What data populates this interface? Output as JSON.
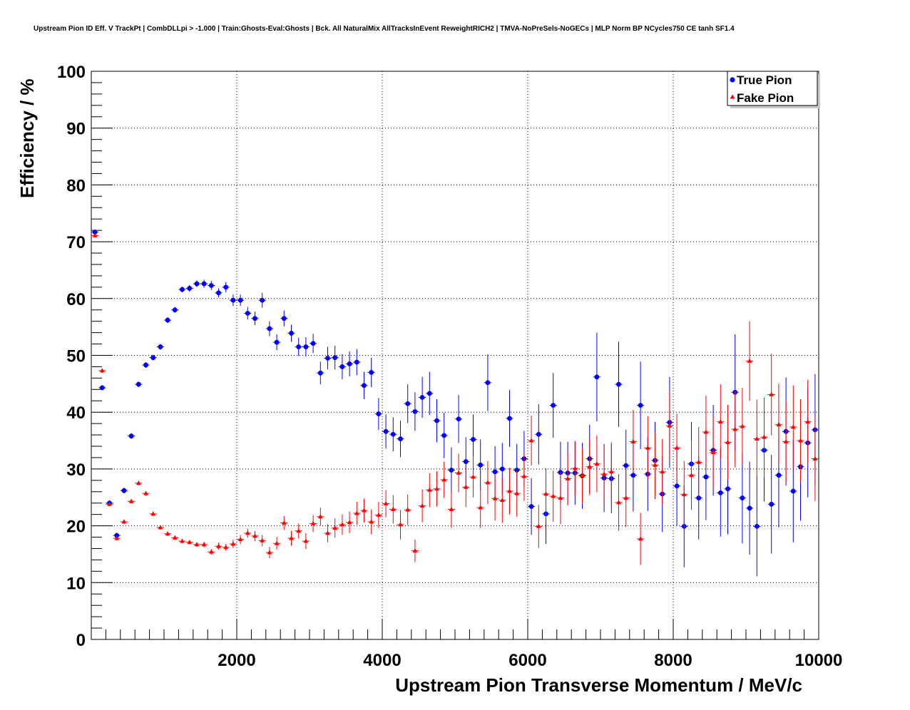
{
  "chart_data": {
    "type": "scatter",
    "title": "Upstream Pion ID Eff. V TrackPt | CombDLLpi > -1.000 | Train:Ghosts-Eval:Ghosts | Bck. All NaturalMix AllTracksInEvent ReweightRICH2 | TMVA-NoPreSels-NoGECs | MLP Norm BP NCycles750 CE tanh SF1.4",
    "xlabel": "Upstream Pion Transverse Momentum / MeV/c",
    "ylabel": "Efficiency / %",
    "xlim": [
      0,
      10000
    ],
    "ylim": [
      0,
      100
    ],
    "x_ticks": [
      2000,
      4000,
      6000,
      8000,
      10000
    ],
    "y_ticks": [
      0,
      10,
      20,
      30,
      40,
      50,
      60,
      70,
      80,
      90,
      100
    ],
    "grid": true,
    "legend_position": "top-right",
    "bin_width": 100,
    "series": [
      {
        "name": "True Pion",
        "marker": "circle",
        "color": "#0000ff",
        "x": [
          50,
          150,
          250,
          350,
          450,
          550,
          650,
          750,
          850,
          950,
          1050,
          1150,
          1250,
          1350,
          1450,
          1550,
          1650,
          1750,
          1850,
          1950,
          2050,
          2150,
          2250,
          2350,
          2450,
          2550,
          2650,
          2750,
          2850,
          2950,
          3050,
          3150,
          3250,
          3350,
          3450,
          3550,
          3650,
          3750,
          3850,
          3950,
          4050,
          4150,
          4250,
          4350,
          4450,
          4550,
          4650,
          4750,
          4850,
          4950,
          5050,
          5150,
          5250,
          5350,
          5450,
          5550,
          5650,
          5750,
          5850,
          5950,
          6050,
          6150,
          6250,
          6350,
          6450,
          6550,
          6650,
          6750,
          6850,
          6950,
          7050,
          7150,
          7250,
          7350,
          7450,
          7550,
          7650,
          7750,
          7850,
          7950,
          8050,
          8150,
          8250,
          8350,
          8450,
          8550,
          8650,
          8750,
          8850,
          8950,
          9050,
          9150,
          9250,
          9350,
          9450,
          9550,
          9650,
          9750,
          9850,
          9950
        ],
        "y": [
          71.7,
          44.3,
          24.0,
          18.3,
          26.2,
          35.8,
          44.9,
          48.3,
          49.6,
          51.5,
          56.2,
          58.0,
          61.6,
          61.8,
          62.6,
          62.6,
          62.3,
          61.0,
          62.0,
          59.7,
          59.7,
          57.4,
          56.5,
          59.7,
          54.7,
          52.3,
          56.5,
          53.9,
          51.5,
          51.5,
          52.1,
          46.9,
          49.5,
          49.6,
          48.0,
          48.5,
          48.8,
          44.7,
          47.0,
          39.7,
          36.6,
          36.1,
          35.3,
          41.5,
          40.1,
          42.6,
          43.3,
          38.5,
          35.9,
          29.8,
          38.8,
          31.3,
          35.2,
          30.7,
          45.2,
          29.5,
          30.0,
          38.9,
          29.8,
          31.8,
          23.4,
          36.1,
          22.1,
          41.2,
          29.4,
          29.3,
          29.3,
          28.8,
          31.8,
          46.2,
          28.4,
          28.3,
          44.9,
          30.6,
          28.9,
          41.2,
          29.1,
          31.5,
          25.6,
          38.2,
          27.0,
          19.9,
          30.9,
          24.9,
          28.6,
          33.3,
          25.8,
          26.5,
          43.5,
          24.9,
          23.1,
          19.9,
          33.3,
          23.8,
          28.9,
          36.6,
          26.1,
          30.4,
          34.6,
          36.9
        ],
        "err": [
          0.4,
          0.4,
          0.5,
          0.5,
          0.5,
          0.5,
          0.5,
          0.5,
          0.5,
          0.5,
          0.5,
          0.5,
          0.5,
          0.6,
          0.6,
          0.7,
          0.8,
          0.8,
          0.9,
          1.0,
          1.0,
          1.1,
          1.2,
          1.3,
          1.3,
          1.4,
          1.4,
          1.5,
          1.6,
          1.7,
          1.7,
          2.0,
          2.0,
          2.1,
          2.2,
          2.2,
          2.3,
          2.4,
          2.6,
          2.8,
          3.0,
          3.0,
          3.2,
          3.4,
          3.4,
          3.6,
          3.8,
          3.8,
          4.0,
          4.0,
          4.2,
          4.3,
          4.4,
          4.5,
          5.0,
          4.5,
          4.6,
          5.0,
          4.6,
          4.9,
          5.0,
          5.3,
          5.3,
          5.7,
          5.4,
          5.5,
          5.6,
          5.8,
          6.0,
          7.8,
          6.0,
          6.1,
          7.5,
          6.3,
          6.4,
          7.7,
          6.5,
          6.8,
          6.7,
          8.0,
          7.0,
          7.2,
          7.4,
          7.3,
          7.6,
          8.0,
          7.7,
          8.0,
          10.2,
          8.0,
          8.2,
          8.8,
          9.0,
          8.7,
          9.2,
          9.5,
          9.0,
          9.5,
          9.6,
          9.8
        ]
      },
      {
        "name": "Fake Pion",
        "marker": "triangle",
        "color": "#ff0000",
        "x": [
          50,
          150,
          250,
          350,
          450,
          550,
          650,
          750,
          850,
          950,
          1050,
          1150,
          1250,
          1350,
          1450,
          1550,
          1650,
          1750,
          1850,
          1950,
          2050,
          2150,
          2250,
          2350,
          2450,
          2550,
          2650,
          2750,
          2850,
          2950,
          3050,
          3150,
          3250,
          3350,
          3450,
          3550,
          3650,
          3750,
          3850,
          3950,
          4050,
          4150,
          4250,
          4350,
          4450,
          4550,
          4650,
          4750,
          4850,
          4950,
          5050,
          5150,
          5250,
          5350,
          5450,
          5550,
          5650,
          5750,
          5850,
          5950,
          6050,
          6150,
          6250,
          6350,
          6450,
          6550,
          6650,
          6750,
          6850,
          6950,
          7050,
          7150,
          7250,
          7350,
          7450,
          7550,
          7650,
          7750,
          7850,
          7950,
          8050,
          8150,
          8250,
          8350,
          8450,
          8550,
          8650,
          8750,
          8850,
          8950,
          9050,
          9150,
          9250,
          9350,
          9450,
          9550,
          9650,
          9750,
          9850,
          9950
        ],
        "y": [
          71.1,
          47.3,
          23.8,
          17.8,
          20.7,
          24.3,
          27.5,
          25.7,
          22.1,
          19.7,
          18.6,
          17.9,
          17.3,
          17.1,
          16.7,
          16.7,
          15.4,
          16.4,
          16.2,
          16.8,
          17.6,
          18.7,
          18.2,
          17.4,
          15.3,
          16.9,
          20.5,
          17.8,
          19.1,
          17.3,
          20.4,
          21.6,
          18.7,
          19.6,
          20.2,
          20.6,
          22.2,
          22.7,
          20.7,
          21.9,
          23.9,
          22.9,
          20.2,
          22.8,
          15.6,
          23.5,
          26.3,
          26.5,
          28.1,
          22.9,
          29.3,
          26.8,
          28.6,
          23.2,
          27.6,
          24.8,
          24.5,
          26.1,
          25.7,
          28.7,
          35.0,
          19.9,
          25.6,
          25.2,
          24.9,
          28.3,
          30.1,
          28.9,
          30.4,
          30.9,
          29.1,
          29.5,
          24.1,
          24.9,
          34.8,
          17.7,
          33.7,
          30.7,
          29.5,
          37.6,
          33.7,
          25.5,
          28.9,
          31.2,
          36.5,
          32.9,
          38.3,
          34.7,
          37.0,
          37.5,
          49.0,
          35.3,
          35.6,
          43.1,
          37.8,
          34.8,
          37.4,
          35.0,
          38.3,
          31.8
        ],
        "err": [
          0.4,
          0.4,
          0.4,
          0.4,
          0.4,
          0.4,
          0.4,
          0.4,
          0.4,
          0.4,
          0.4,
          0.4,
          0.4,
          0.4,
          0.4,
          0.5,
          0.5,
          0.6,
          0.6,
          0.7,
          0.8,
          0.8,
          0.9,
          1.0,
          1.0,
          1.1,
          1.2,
          1.3,
          1.3,
          1.4,
          1.5,
          1.6,
          1.6,
          1.7,
          1.8,
          1.9,
          2.0,
          2.1,
          2.2,
          2.3,
          2.4,
          2.5,
          2.6,
          2.7,
          2.0,
          2.9,
          3.0,
          3.1,
          3.2,
          3.3,
          3.4,
          3.5,
          3.6,
          3.6,
          3.8,
          3.9,
          4.0,
          4.1,
          4.1,
          4.3,
          4.4,
          3.8,
          4.5,
          4.5,
          4.6,
          4.7,
          4.8,
          4.9,
          5.0,
          5.0,
          5.1,
          5.2,
          5.0,
          5.1,
          5.6,
          4.6,
          5.6,
          5.7,
          5.8,
          6.0,
          6.0,
          5.9,
          6.1,
          6.2,
          6.4,
          6.4,
          6.6,
          6.6,
          6.7,
          6.8,
          7.0,
          6.9,
          7.0,
          7.2,
          7.2,
          7.2,
          7.3,
          7.3,
          7.4,
          7.4
        ]
      }
    ]
  }
}
